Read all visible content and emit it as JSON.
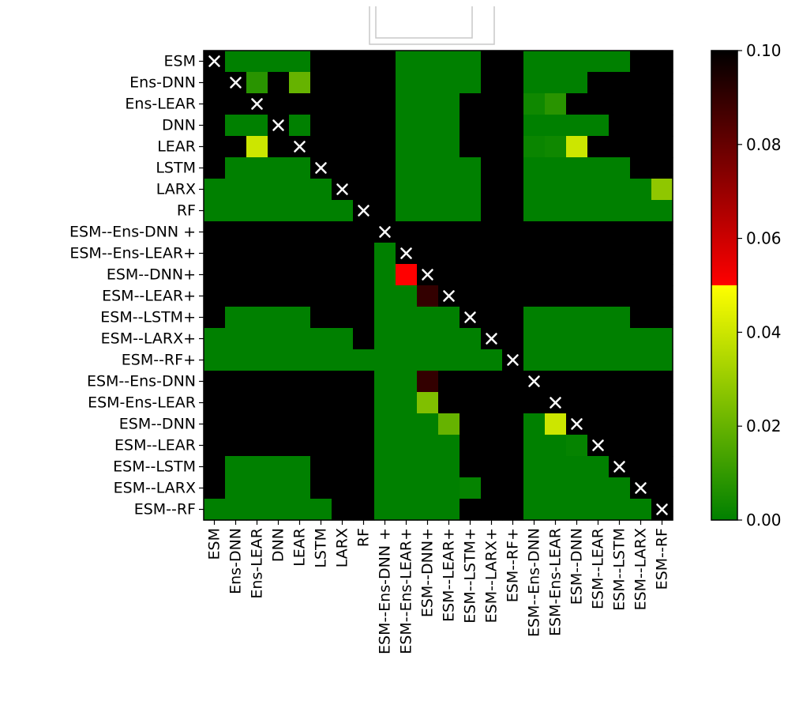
{
  "chart_data": {
    "type": "heatmap",
    "labels": [
      "ESM",
      "Ens-DNN",
      "Ens-LEAR",
      "DNN",
      "LEAR",
      "LSTM",
      "LARX",
      "RF",
      "ESM--Ens-DNN +",
      "ESM--Ens-LEAR+",
      "ESM--DNN+",
      "ESM--LEAR+",
      "ESM--LSTM+",
      "ESM--LARX+",
      "ESM--RF+",
      "ESM--Ens-DNN",
      "ESM-Ens-LEAR",
      "ESM--DNN",
      "ESM--LEAR",
      "ESM--LSTM",
      "ESM--LARX",
      "ESM--RF"
    ],
    "values": [
      [
        null,
        0,
        0,
        0,
        0,
        1,
        1,
        1,
        1,
        0,
        0,
        0,
        0,
        1,
        1,
        0,
        0,
        0,
        0,
        0,
        1,
        1
      ],
      [
        1,
        null,
        0.008,
        1,
        0.02,
        1,
        1,
        1,
        1,
        0,
        0,
        0,
        0,
        1,
        1,
        0,
        0,
        0,
        1,
        1,
        1,
        1
      ],
      [
        1,
        1,
        null,
        1,
        1,
        1,
        1,
        1,
        1,
        0,
        0,
        0,
        1,
        1,
        1,
        0.003,
        0.008,
        1,
        1,
        1,
        1,
        1
      ],
      [
        1,
        0,
        0,
        null,
        0,
        1,
        1,
        1,
        1,
        0,
        0,
        0,
        1,
        1,
        1,
        0,
        0,
        0,
        0,
        1,
        1,
        1
      ],
      [
        1,
        1,
        0.04,
        1,
        null,
        1,
        1,
        1,
        1,
        0,
        0,
        0,
        1,
        1,
        1,
        0.002,
        0.003,
        0.04,
        1,
        1,
        1,
        1
      ],
      [
        1,
        0,
        0,
        0,
        0,
        null,
        1,
        1,
        1,
        0,
        0,
        0,
        0,
        1,
        1,
        0,
        0,
        0,
        0,
        0,
        1,
        1
      ],
      [
        0,
        0,
        0,
        0,
        0,
        0,
        null,
        1,
        1,
        0,
        0,
        0,
        0,
        1,
        1,
        0,
        0,
        0,
        0,
        0,
        0,
        0.028
      ],
      [
        0,
        0,
        0,
        0,
        0,
        0,
        0,
        null,
        1,
        0,
        0,
        0,
        0,
        1,
        1,
        0,
        0,
        0,
        0,
        0,
        0,
        0
      ],
      [
        1,
        1,
        1,
        1,
        1,
        1,
        1,
        1,
        null,
        1,
        1,
        1,
        1,
        1,
        1,
        1,
        1,
        1,
        1,
        1,
        1,
        1
      ],
      [
        1,
        1,
        1,
        1,
        1,
        1,
        1,
        1,
        0,
        null,
        1,
        1,
        1,
        1,
        1,
        1,
        1,
        1,
        1,
        1,
        1,
        1
      ],
      [
        1,
        1,
        1,
        1,
        1,
        1,
        1,
        1,
        0,
        0.05,
        null,
        1,
        1,
        1,
        1,
        1,
        1,
        1,
        1,
        1,
        1,
        1
      ],
      [
        1,
        1,
        1,
        1,
        1,
        1,
        1,
        1,
        0,
        0,
        0.09,
        null,
        1,
        1,
        1,
        1,
        1,
        1,
        1,
        1,
        1,
        1
      ],
      [
        1,
        0,
        0,
        0,
        0,
        1,
        1,
        1,
        0,
        0,
        0,
        0,
        null,
        1,
        1,
        0,
        0,
        0,
        0,
        0,
        1,
        1
      ],
      [
        0,
        0,
        0,
        0,
        0,
        0,
        0,
        1,
        0,
        0,
        0,
        0,
        0,
        null,
        1,
        0,
        0,
        0,
        0,
        0,
        0,
        0
      ],
      [
        0,
        0,
        0,
        0,
        0,
        0,
        0,
        0,
        0,
        0,
        0,
        0,
        0,
        0,
        null,
        0,
        0,
        0,
        0,
        0,
        0,
        0
      ],
      [
        1,
        1,
        1,
        1,
        1,
        1,
        1,
        1,
        0,
        0,
        0.09,
        1,
        1,
        1,
        1,
        null,
        1,
        1,
        1,
        1,
        1,
        1
      ],
      [
        1,
        1,
        1,
        1,
        1,
        1,
        1,
        1,
        0,
        0,
        0.025,
        1,
        1,
        1,
        1,
        1,
        null,
        1,
        1,
        1,
        1,
        1
      ],
      [
        1,
        1,
        1,
        1,
        1,
        1,
        1,
        1,
        0,
        0,
        0,
        0.02,
        1,
        1,
        1,
        0,
        0.04,
        null,
        1,
        1,
        1,
        1
      ],
      [
        1,
        1,
        1,
        1,
        1,
        1,
        1,
        1,
        0,
        0,
        0,
        0,
        1,
        1,
        1,
        0,
        0,
        0.001,
        null,
        1,
        1,
        1
      ],
      [
        1,
        0,
        0,
        0,
        0,
        1,
        1,
        1,
        0,
        0,
        0,
        0,
        1,
        1,
        1,
        0,
        0,
        0,
        0,
        null,
        1,
        1
      ],
      [
        1,
        0,
        0,
        0,
        0,
        1,
        1,
        1,
        0,
        0,
        0,
        0,
        0.001,
        1,
        1,
        0,
        0,
        0,
        0,
        0,
        null,
        1
      ],
      [
        0,
        0,
        0,
        0,
        0,
        0,
        1,
        1,
        0,
        0,
        0,
        0,
        1,
        1,
        1,
        0,
        0,
        0,
        0,
        0,
        0,
        null
      ]
    ],
    "colorbar": {
      "range": [
        0,
        0.1
      ],
      "ticks": [
        "0.00",
        "0.02",
        "0.04",
        "0.06",
        "0.08",
        "0.10"
      ],
      "tick_values": [
        0,
        0.02,
        0.04,
        0.06,
        0.08,
        0.1
      ],
      "colormap": "green-yellow (0-0.05), red-black (0.05-0.1)",
      "above_range_color": "#000000"
    },
    "diagonal_marker": "×",
    "colors": {
      "green": "#008000",
      "yellow": "#ffff00",
      "red": "#ff0000",
      "black": "#000000",
      "marker": "#ffffff"
    }
  }
}
